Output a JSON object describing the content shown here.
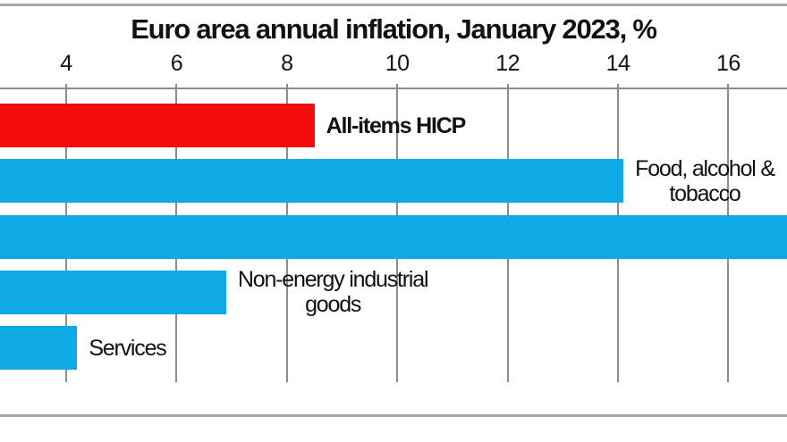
{
  "chart_data": {
    "type": "bar",
    "orientation": "horizontal",
    "title": "Euro area annual inflation, January 2023, %",
    "x_axis": {
      "tick_values": [
        4,
        6,
        8,
        10,
        12,
        14,
        16
      ],
      "tick_labels": [
        "4",
        "6",
        "8",
        "10",
        "12",
        "14",
        "16"
      ],
      "visible_value_range": [
        2.8,
        17.1
      ],
      "grid": true
    },
    "categories": [
      "All-items HICP",
      "Food, alcohol & tobacco",
      "",
      "Non-energy industrial goods",
      "Services"
    ],
    "values": [
      8.5,
      14.1,
      17.2,
      6.9,
      4.2
    ],
    "bars": [
      {
        "name": "all-items-hicp",
        "label_lines": [
          "All-items HICP"
        ],
        "value": 8.5,
        "color": "#F40B0B",
        "bold": true
      },
      {
        "name": "food-alcohol-tobacco",
        "label_lines": [
          "Food, alcohol &",
          "tobacco"
        ],
        "value": 14.1,
        "color": "#0FA9E6",
        "bold": false
      },
      {
        "name": "unlabeled-cropped-bar",
        "label_lines": [],
        "value": 17.2,
        "color": "#0FA9E6",
        "bold": false,
        "value_estimated": true,
        "note": "bar extends past right edge of image; no label visible"
      },
      {
        "name": "non-energy-industrial-goods",
        "label_lines": [
          "Non-energy industrial",
          "goods"
        ],
        "value": 6.9,
        "color": "#0FA9E6",
        "bold": false
      },
      {
        "name": "services",
        "label_lines": [
          "Services"
        ],
        "value": 4.2,
        "color": "#0FA9E6",
        "bold": false
      }
    ],
    "legend": "none"
  },
  "colors": {
    "bar_red": "#F40B0B",
    "bar_blue": "#0FA9E6",
    "gridline": "#8C8C8C",
    "border": "#A6A6A6",
    "text": "#111111",
    "background": "#FFFFFF"
  }
}
